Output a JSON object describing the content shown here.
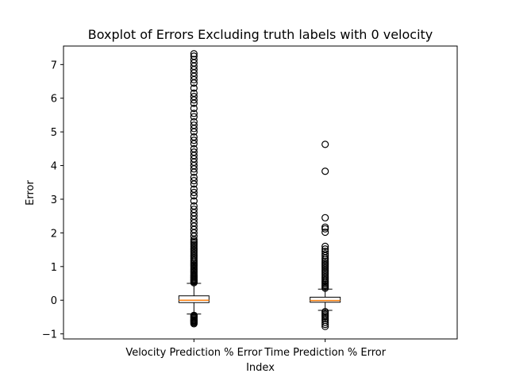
{
  "chart_data": {
    "type": "boxplot",
    "title": "Boxplot of Errors Excluding truth labels with 0 velocity",
    "xlabel": "Index",
    "ylabel": "Error",
    "ylim": [
      -1.15,
      7.55
    ],
    "yticks": [
      -1,
      0,
      1,
      2,
      3,
      4,
      5,
      6,
      7
    ],
    "grid": false,
    "categories": [
      "Velocity Prediction % Error",
      "Time Prediction % Error"
    ],
    "boxes": [
      {
        "name": "Velocity Prediction % Error",
        "q1": -0.07,
        "median": 0.0,
        "q3": 0.13,
        "whisker_low": -0.41,
        "whisker_high": 0.5,
        "outliers": [
          -0.7,
          -0.67,
          -0.64,
          -0.62,
          -0.6,
          -0.58,
          -0.55,
          -0.52,
          -0.5,
          -0.47,
          -0.45,
          0.52,
          0.55,
          0.58,
          0.61,
          0.64,
          0.67,
          0.7,
          0.73,
          0.76,
          0.8,
          0.84,
          0.88,
          0.92,
          0.96,
          1.0,
          1.04,
          1.08,
          1.12,
          1.16,
          1.2,
          1.25,
          1.3,
          1.35,
          1.4,
          1.45,
          1.5,
          1.55,
          1.6,
          1.65,
          1.7,
          1.75,
          1.8,
          1.9,
          2.0,
          2.1,
          2.2,
          2.3,
          2.4,
          2.5,
          2.6,
          2.7,
          2.8,
          2.95,
          3.1,
          3.2,
          3.3,
          3.45,
          3.55,
          3.65,
          3.8,
          3.9,
          4.0,
          4.1,
          4.2,
          4.3,
          4.4,
          4.5,
          4.65,
          4.75,
          4.85,
          5.0,
          5.1,
          5.2,
          5.3,
          5.45,
          5.55,
          5.7,
          5.85,
          5.95,
          6.05,
          6.15,
          6.3,
          6.45,
          6.55,
          6.65,
          6.75,
          6.85,
          6.95,
          7.05,
          7.15,
          7.25,
          7.32
        ]
      },
      {
        "name": "Time Prediction % Error",
        "q1": -0.06,
        "median": -0.01,
        "q3": 0.09,
        "whisker_low": -0.3,
        "whisker_high": 0.33,
        "outliers": [
          -0.78,
          -0.72,
          -0.66,
          -0.6,
          -0.55,
          -0.5,
          -0.46,
          -0.42,
          -0.38,
          -0.34,
          0.36,
          0.4,
          0.44,
          0.48,
          0.52,
          0.56,
          0.6,
          0.65,
          0.7,
          0.75,
          0.8,
          0.85,
          0.9,
          0.95,
          1.0,
          1.05,
          1.1,
          1.15,
          1.2,
          1.25,
          1.32,
          1.38,
          1.45,
          1.52,
          1.6,
          2.02,
          2.12,
          2.17,
          2.45,
          3.83,
          4.63
        ]
      }
    ],
    "colors": {
      "box": "#000000",
      "median": "#ff7f0e",
      "outlier": "#000000"
    }
  }
}
